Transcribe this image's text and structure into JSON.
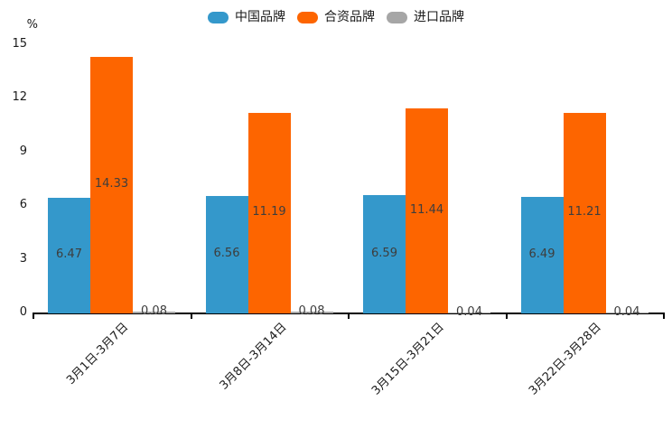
{
  "legend": {
    "items": [
      {
        "label": "中国品牌",
        "color": "#3498cb"
      },
      {
        "label": "合资品牌",
        "color": "#fd6500"
      },
      {
        "label": "进口品牌",
        "color": "#a6a6a6"
      }
    ]
  },
  "axes": {
    "unit_label": "%",
    "yticks": [
      "0",
      "3",
      "6",
      "9",
      "12",
      "15"
    ]
  },
  "chart_data": {
    "type": "bar",
    "title": "",
    "categories": [
      "3月1日-3月7日",
      "3月8日-3月14日",
      "3月15日-3月21日",
      "3月22日-3月28日"
    ],
    "series": [
      {
        "name": "中国品牌",
        "color": "#3498cb",
        "values": [
          6.47,
          6.56,
          6.59,
          6.49
        ]
      },
      {
        "name": "合资品牌",
        "color": "#fd6500",
        "values": [
          14.33,
          11.19,
          11.44,
          11.21
        ]
      },
      {
        "name": "进口品牌",
        "color": "#a6a6a6",
        "values": [
          0.08,
          0.08,
          0.04,
          0.04
        ]
      }
    ],
    "xlabel": "",
    "ylabel": "%",
    "ylim": [
      0,
      15
    ],
    "yticks": [
      0,
      3,
      6,
      9,
      12,
      15
    ],
    "grid": false,
    "legend_position": "top",
    "value_labels_shown": true
  },
  "colors": {
    "axis": "#000000",
    "value_label": "#3d3d3d",
    "tick_label": "#1a1a1a",
    "background": "#ffffff"
  }
}
